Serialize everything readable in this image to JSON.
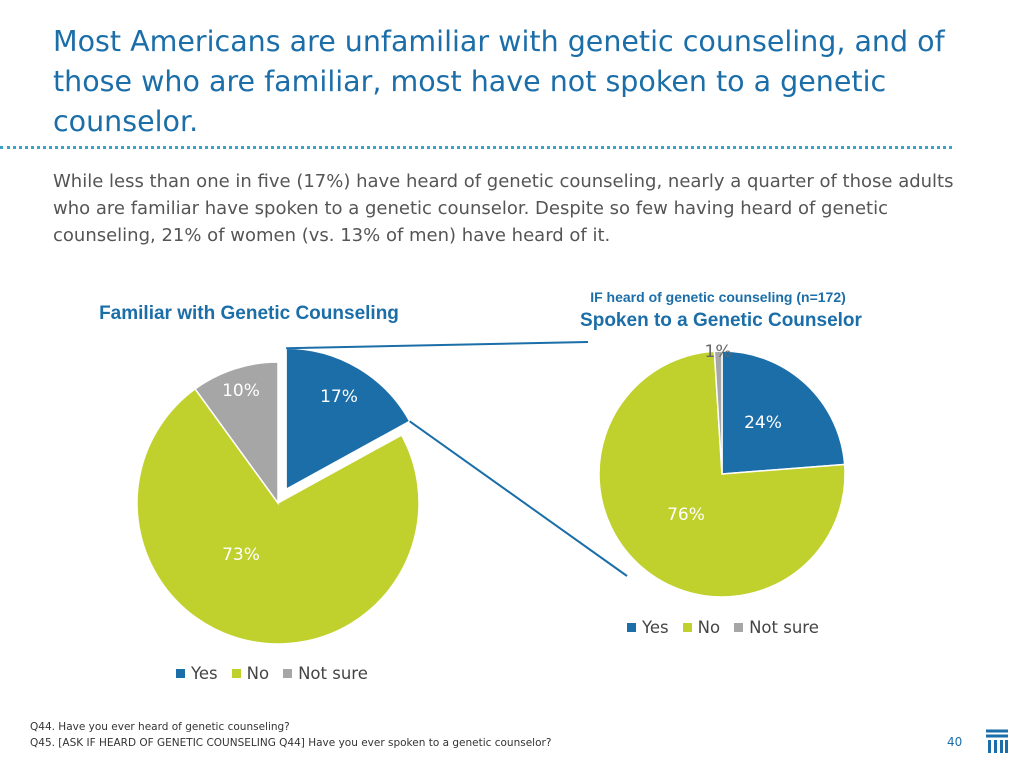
{
  "header": {
    "title": "Most Americans are unfamiliar with genetic counseling, and of those who are familiar, most have not spoken to a genetic counselor.",
    "subtitle": "While less than one in five (17%) have heard of genetic counseling, nearly a quarter of those adults who are familiar have spoken to a genetic counselor. Despite so few having heard of genetic counseling, 21% of women (vs. 13% of men) have heard of it."
  },
  "colors": {
    "yes": "#1b6ea8",
    "no": "#c0d12e",
    "not_sure": "#a6a6a6",
    "title": "#1b6ea8",
    "connector": "#1b6ea8"
  },
  "chart_data": [
    {
      "type": "pie",
      "title": "Familiar with Genetic Counseling",
      "categories": [
        "Yes",
        "No",
        "Not sure"
      ],
      "values": [
        17,
        73,
        10
      ],
      "labels": [
        "17%",
        "73%",
        "10%"
      ],
      "exploded": "Yes",
      "legend": "bottom"
    },
    {
      "type": "pie",
      "subtitle": "IF heard of genetic counseling (n=172)",
      "title": "Spoken to a Genetic Counselor",
      "categories": [
        "Yes",
        "No",
        "Not sure"
      ],
      "values": [
        24,
        76,
        1
      ],
      "labels": [
        "24%",
        "76%",
        "1%"
      ],
      "legend": "bottom"
    }
  ],
  "footnotes": {
    "q44": "Q44. Have you ever heard of genetic counseling?",
    "q45": "Q45. [ASK IF HEARD OF GENETIC COUNSELING Q44] Have you ever spoken to a genetic counselor?"
  },
  "page_number": "40"
}
